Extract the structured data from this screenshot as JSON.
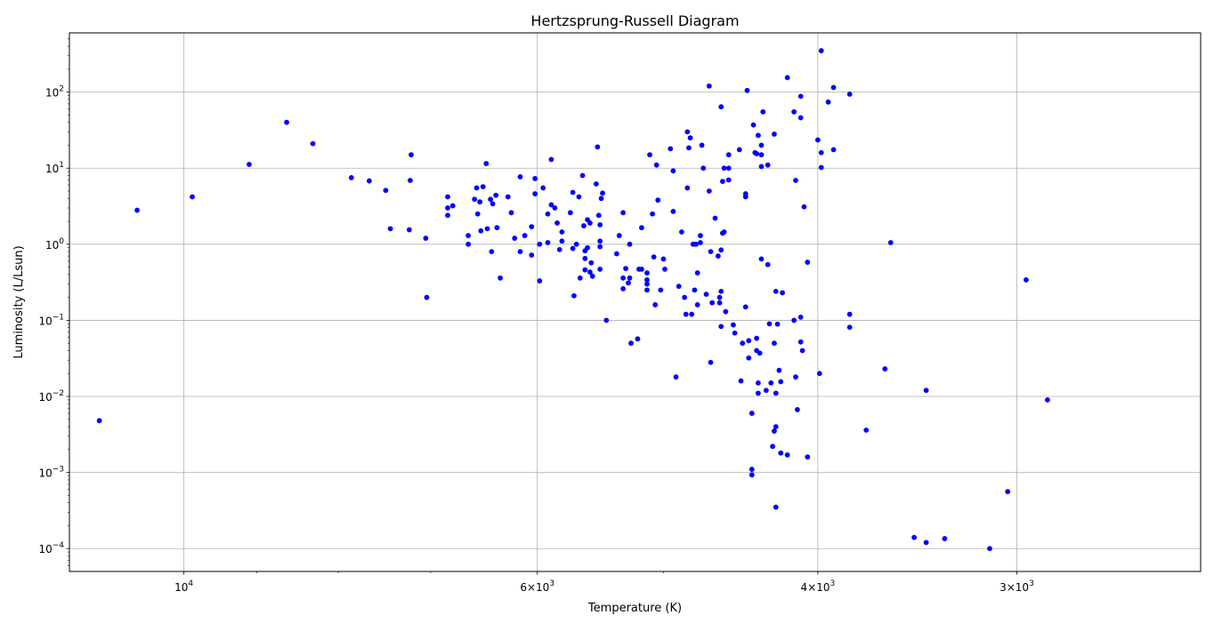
{
  "chart_data": {
    "type": "scatter",
    "title": "Hertzsprung-Russell Diagram",
    "xlabel": "Temperature (K)",
    "ylabel": "Luminosity (L/Lsun)",
    "x_scale": "log",
    "y_scale": "log",
    "x_inverted": true,
    "xlim": [
      11800,
      2300
    ],
    "ylim": [
      5e-05,
      600
    ],
    "grid": true,
    "point_color": "#0000ff",
    "x_major_ticks": [
      {
        "value": 10000,
        "base": "10",
        "exp": "4"
      },
      {
        "value": 6000,
        "base": "6×10",
        "exp": "3"
      },
      {
        "value": 4000,
        "base": "4×10",
        "exp": "3"
      },
      {
        "value": 3000,
        "base": "3×10",
        "exp": "3"
      }
    ],
    "x_minor_ticks": [
      9000,
      8000,
      7000,
      5000
    ],
    "y_major_ticks": [
      {
        "value": 0.0001,
        "base": "10",
        "exp": "−4"
      },
      {
        "value": 0.001,
        "base": "10",
        "exp": "−3"
      },
      {
        "value": 0.01,
        "base": "10",
        "exp": "−2"
      },
      {
        "value": 0.1,
        "base": "10",
        "exp": "−1"
      },
      {
        "value": 1,
        "base": "10",
        "exp": "0"
      },
      {
        "value": 10,
        "base": "10",
        "exp": "1"
      },
      {
        "value": 100,
        "base": "10",
        "exp": "2"
      }
    ],
    "points": [
      [
        11300,
        0.0048
      ],
      [
        10700,
        2.8
      ],
      [
        9880,
        4.2
      ],
      [
        9100,
        11.2
      ],
      [
        8620,
        40
      ],
      [
        8300,
        21
      ],
      [
        7850,
        7.5
      ],
      [
        7650,
        6.8
      ],
      [
        7470,
        5.1
      ],
      [
        7420,
        1.6
      ],
      [
        7220,
        1.55
      ],
      [
        7200,
        15
      ],
      [
        7210,
        6.9
      ],
      [
        7050,
        1.2
      ],
      [
        7040,
        0.2
      ],
      [
        6830,
        4.2
      ],
      [
        6830,
        3
      ],
      [
        6830,
        2.4
      ],
      [
        6780,
        3.2
      ],
      [
        6630,
        1.3
      ],
      [
        6630,
        1
      ],
      [
        6570,
        3.9
      ],
      [
        6550,
        5.5
      ],
      [
        6540,
        2.5
      ],
      [
        6520,
        3.6
      ],
      [
        6510,
        1.5
      ],
      [
        6490,
        5.7
      ],
      [
        6460,
        11.5
      ],
      [
        6450,
        1.6
      ],
      [
        6420,
        3.9
      ],
      [
        6410,
        0.8
      ],
      [
        6400,
        3.4
      ],
      [
        6370,
        4.4
      ],
      [
        6360,
        1.65
      ],
      [
        6330,
        0.36
      ],
      [
        6260,
        4.2
      ],
      [
        6230,
        2.6
      ],
      [
        6200,
        1.2
      ],
      [
        6150,
        7.7
      ],
      [
        6150,
        0.8
      ],
      [
        6110,
        1.3
      ],
      [
        6050,
        1.7
      ],
      [
        6050,
        0.72
      ],
      [
        6020,
        7.3
      ],
      [
        6020,
        4.6
      ],
      [
        5980,
        1
      ],
      [
        5980,
        0.33
      ],
      [
        5950,
        5.5
      ],
      [
        5910,
        2.5
      ],
      [
        5910,
        1.05
      ],
      [
        5880,
        3.3
      ],
      [
        5880,
        13
      ],
      [
        5850,
        3
      ],
      [
        5830,
        1.9
      ],
      [
        5810,
        0.85
      ],
      [
        5790,
        1.45
      ],
      [
        5790,
        1.1
      ],
      [
        5720,
        2.6
      ],
      [
        5700,
        4.8
      ],
      [
        5700,
        0.88
      ],
      [
        5690,
        0.21
      ],
      [
        5670,
        1
      ],
      [
        5650,
        4.2
      ],
      [
        5640,
        0.36
      ],
      [
        5620,
        8
      ],
      [
        5610,
        1.75
      ],
      [
        5600,
        0.82
      ],
      [
        5600,
        0.65
      ],
      [
        5600,
        0.46
      ],
      [
        5580,
        2.1
      ],
      [
        5580,
        0.9
      ],
      [
        5560,
        1.9
      ],
      [
        5560,
        0.43
      ],
      [
        5550,
        0.57
      ],
      [
        5540,
        0.38
      ],
      [
        5510,
        6.2
      ],
      [
        5500,
        19
      ],
      [
        5490,
        2.4
      ],
      [
        5480,
        1.8
      ],
      [
        5480,
        1.1
      ],
      [
        5480,
        0.93
      ],
      [
        5480,
        0.47
      ],
      [
        5470,
        4
      ],
      [
        5460,
        4.7
      ],
      [
        5430,
        0.1
      ],
      [
        5350,
        0.75
      ],
      [
        5330,
        1.3
      ],
      [
        5300,
        2.6
      ],
      [
        5300,
        0.36
      ],
      [
        5300,
        0.26
      ],
      [
        5280,
        0.48
      ],
      [
        5260,
        0.31
      ],
      [
        5250,
        1
      ],
      [
        5250,
        0.36
      ],
      [
        5240,
        0.05
      ],
      [
        5190,
        0.057
      ],
      [
        5180,
        0.47
      ],
      [
        5160,
        1.65
      ],
      [
        5160,
        0.47
      ],
      [
        5120,
        0.42
      ],
      [
        5120,
        0.34
      ],
      [
        5120,
        0.3
      ],
      [
        5120,
        0.25
      ],
      [
        5100,
        15
      ],
      [
        5080,
        2.5
      ],
      [
        5070,
        0.68
      ],
      [
        5060,
        0.16
      ],
      [
        5050,
        11
      ],
      [
        5040,
        3.8
      ],
      [
        5020,
        0.25
      ],
      [
        5000,
        0.64
      ],
      [
        4990,
        0.47
      ],
      [
        4950,
        18
      ],
      [
        4930,
        9.2
      ],
      [
        4930,
        2.7
      ],
      [
        4910,
        0.018
      ],
      [
        4890,
        0.28
      ],
      [
        4870,
        1.45
      ],
      [
        4850,
        0.2
      ],
      [
        4840,
        0.12
      ],
      [
        4830,
        5.5
      ],
      [
        4830,
        30
      ],
      [
        4820,
        18.5
      ],
      [
        4810,
        25
      ],
      [
        4800,
        0.12
      ],
      [
        4790,
        1
      ],
      [
        4780,
        0.25
      ],
      [
        4770,
        1
      ],
      [
        4760,
        0.42
      ],
      [
        4760,
        0.16
      ],
      [
        4740,
        1.3
      ],
      [
        4740,
        1.05
      ],
      [
        4730,
        20
      ],
      [
        4720,
        10
      ],
      [
        4700,
        0.22
      ],
      [
        4680,
        120
      ],
      [
        4680,
        5
      ],
      [
        4670,
        0.8
      ],
      [
        4670,
        0.028
      ],
      [
        4660,
        0.17
      ],
      [
        4640,
        2.2
      ],
      [
        4620,
        0.7
      ],
      [
        4610,
        0.2
      ],
      [
        4610,
        0.17
      ],
      [
        4600,
        64
      ],
      [
        4600,
        0.84
      ],
      [
        4600,
        0.24
      ],
      [
        4600,
        0.083
      ],
      [
        4590,
        6.7
      ],
      [
        4590,
        1.4
      ],
      [
        4580,
        10
      ],
      [
        4580,
        1.45
      ],
      [
        4570,
        0.13
      ],
      [
        4550,
        10
      ],
      [
        4550,
        7
      ],
      [
        4550,
        15
      ],
      [
        4520,
        0.087
      ],
      [
        4510,
        0.068
      ],
      [
        4480,
        17.5
      ],
      [
        4470,
        0.016
      ],
      [
        4460,
        0.05
      ],
      [
        4440,
        4.6
      ],
      [
        4440,
        4.2
      ],
      [
        4440,
        0.15
      ],
      [
        4430,
        105
      ],
      [
        4420,
        0.054
      ],
      [
        4420,
        0.032
      ],
      [
        4400,
        0.00093
      ],
      [
        4400,
        0.0011
      ],
      [
        4400,
        0.006
      ],
      [
        4390,
        37
      ],
      [
        4380,
        16
      ],
      [
        4370,
        15.5
      ],
      [
        4370,
        0.058
      ],
      [
        4370,
        0.04
      ],
      [
        4360,
        27
      ],
      [
        4360,
        0.015
      ],
      [
        4360,
        0.011
      ],
      [
        4350,
        0.037
      ],
      [
        4340,
        20
      ],
      [
        4340,
        15
      ],
      [
        4340,
        10.5
      ],
      [
        4340,
        0.64
      ],
      [
        4330,
        55
      ],
      [
        4310,
        0.012
      ],
      [
        4300,
        11
      ],
      [
        4300,
        0.54
      ],
      [
        4290,
        0.09
      ],
      [
        4280,
        0.015
      ],
      [
        4270,
        0.0022
      ],
      [
        4260,
        28
      ],
      [
        4260,
        0.05
      ],
      [
        4260,
        0.0035
      ],
      [
        4250,
        0.00035
      ],
      [
        4250,
        0.004
      ],
      [
        4250,
        0.24
      ],
      [
        4250,
        0.011
      ],
      [
        4240,
        0.089
      ],
      [
        4230,
        0.022
      ],
      [
        4220,
        0.0018
      ],
      [
        4220,
        0.0156
      ],
      [
        4210,
        0.23
      ],
      [
        4180,
        0.0017
      ],
      [
        4180,
        155
      ],
      [
        4140,
        55
      ],
      [
        4140,
        0.1
      ],
      [
        4130,
        6.9
      ],
      [
        4130,
        0.018
      ],
      [
        4120,
        0.0067
      ],
      [
        4100,
        88
      ],
      [
        4100,
        46
      ],
      [
        4100,
        0.11
      ],
      [
        4100,
        0.052
      ],
      [
        4090,
        0.04
      ],
      [
        4080,
        3.1
      ],
      [
        4060,
        0.58
      ],
      [
        4060,
        0.0016
      ],
      [
        4000,
        23.5
      ],
      [
        3990,
        0.02
      ],
      [
        3980,
        350
      ],
      [
        3980,
        16
      ],
      [
        3980,
        10.2
      ],
      [
        3940,
        74
      ],
      [
        3910,
        115
      ],
      [
        3910,
        17.5
      ],
      [
        3820,
        94
      ],
      [
        3820,
        0.12
      ],
      [
        3820,
        0.081
      ],
      [
        3730,
        0.0036
      ],
      [
        3630,
        0.023
      ],
      [
        3600,
        1.05
      ],
      [
        3480,
        0.00014
      ],
      [
        3420,
        0.00012
      ],
      [
        3420,
        0.012
      ],
      [
        3330,
        0.000135
      ],
      [
        3120,
        0.0001
      ],
      [
        3040,
        0.00056
      ],
      [
        2960,
        0.34
      ],
      [
        2870,
        0.009
      ]
    ]
  }
}
